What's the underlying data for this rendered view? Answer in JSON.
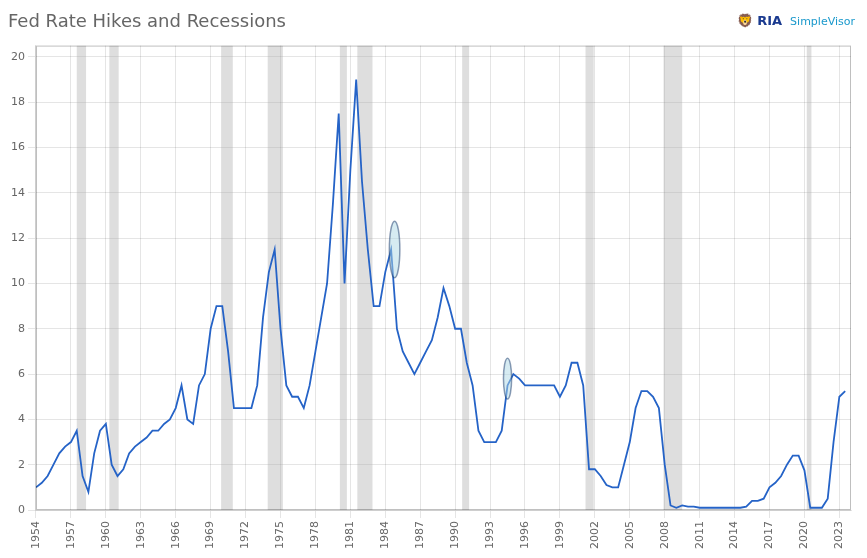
{
  "chart_data": {
    "type": "line",
    "title": "Fed Rate Hikes and Recessions",
    "annotations": [
      "🦁 RIA",
      "SimpleVisor"
    ],
    "color": "#2563c7",
    "x": [
      1954.0,
      1954.5,
      1955.0,
      1955.5,
      1956.0,
      1956.5,
      1957.0,
      1957.5,
      1958.0,
      1958.5,
      1959.0,
      1959.5,
      1960.0,
      1960.5,
      1961.0,
      1961.5,
      1962.0,
      1962.5,
      1963.0,
      1963.5,
      1964.0,
      1964.5,
      1965.0,
      1965.5,
      1966.0,
      1966.5,
      1967.0,
      1967.5,
      1968.0,
      1968.5,
      1969.0,
      1969.5,
      1970.0,
      1970.5,
      1971.0,
      1971.5,
      1972.0,
      1972.5,
      1973.0,
      1973.5,
      1974.0,
      1974.5,
      1975.0,
      1975.5,
      1976.0,
      1976.5,
      1977.0,
      1977.5,
      1978.0,
      1978.5,
      1979.0,
      1979.5,
      1980.0,
      1980.5,
      1981.0,
      1981.5,
      1982.0,
      1982.5,
      1983.0,
      1983.5,
      1984.0,
      1984.5,
      1985.0,
      1985.5,
      1986.0,
      1986.5,
      1987.0,
      1987.5,
      1988.0,
      1988.5,
      1989.0,
      1989.5,
      1990.0,
      1990.5,
      1991.0,
      1991.5,
      1992.0,
      1992.5,
      1993.0,
      1993.5,
      1994.0,
      1994.5,
      1995.0,
      1995.5,
      1996.0,
      1996.5,
      1997.0,
      1997.5,
      1998.0,
      1998.5,
      1999.0,
      1999.5,
      2000.0,
      2000.5,
      2001.0,
      2001.5,
      2002.0,
      2002.5,
      2003.0,
      2003.5,
      2004.0,
      2004.5,
      2005.0,
      2005.5,
      2006.0,
      2006.5,
      2007.0,
      2007.5,
      2008.0,
      2008.5,
      2009.0,
      2009.5,
      2010.0,
      2010.5,
      2011.0,
      2011.5,
      2012.0,
      2012.5,
      2013.0,
      2013.5,
      2014.0,
      2014.5,
      2015.0,
      2015.5,
      2016.0,
      2016.5,
      2017.0,
      2017.5,
      2018.0,
      2018.5,
      2019.0,
      2019.5,
      2020.0,
      2020.5,
      2021.0,
      2021.5,
      2022.0,
      2022.5,
      2023.0,
      2023.5
    ],
    "values": [
      1.0,
      1.2,
      1.5,
      2.0,
      2.5,
      2.8,
      3.0,
      3.5,
      1.5,
      0.8,
      2.5,
      3.5,
      3.8,
      2.0,
      1.5,
      1.8,
      2.5,
      2.8,
      3.0,
      3.2,
      3.5,
      3.5,
      3.8,
      4.0,
      4.5,
      5.5,
      4.0,
      3.8,
      5.5,
      6.0,
      8.0,
      9.0,
      9.0,
      7.0,
      4.5,
      4.5,
      4.5,
      4.5,
      5.5,
      8.5,
      10.5,
      11.5,
      8.0,
      5.5,
      5.0,
      5.0,
      4.5,
      5.5,
      7.0,
      8.5,
      10.0,
      13.5,
      17.5,
      10.0,
      15.0,
      19.0,
      14.5,
      11.5,
      9.0,
      9.0,
      10.5,
      11.5,
      8.0,
      7.0,
      6.5,
      6.0,
      6.5,
      7.0,
      7.5,
      8.5,
      9.8,
      9.0,
      8.0,
      8.0,
      6.5,
      5.5,
      3.5,
      3.0,
      3.0,
      3.0,
      3.5,
      5.5,
      6.0,
      5.8,
      5.5,
      5.5,
      5.5,
      5.5,
      5.5,
      5.5,
      5.0,
      5.5,
      6.5,
      6.5,
      5.5,
      1.8,
      1.8,
      1.5,
      1.1,
      1.0,
      1.0,
      2.0,
      3.0,
      4.5,
      5.25,
      5.25,
      5.0,
      4.5,
      2.0,
      0.2,
      0.1,
      0.2,
      0.15,
      0.15,
      0.1,
      0.1,
      0.1,
      0.1,
      0.1,
      0.1,
      0.1,
      0.1,
      0.15,
      0.4,
      0.4,
      0.5,
      1.0,
      1.2,
      1.5,
      2.0,
      2.4,
      2.4,
      1.75,
      0.1,
      0.1,
      0.1,
      0.5,
      3.0,
      5.0,
      5.25
    ],
    "recessions": [
      [
        1957.5,
        1958.3
      ],
      [
        1960.3,
        1961.1
      ],
      [
        1969.9,
        1970.9
      ],
      [
        1973.9,
        1975.2
      ],
      [
        1980.1,
        1980.7
      ],
      [
        1981.6,
        1982.9
      ],
      [
        1990.6,
        1991.2
      ],
      [
        2001.2,
        2001.9
      ],
      [
        2007.9,
        2009.5
      ],
      [
        2020.2,
        2020.6
      ]
    ],
    "ellipses": [
      {
        "x": 1984.8,
        "y": 11.5,
        "width": 0.9,
        "height": 2.5
      },
      {
        "x": 1994.5,
        "y": 5.8,
        "width": 0.7,
        "height": 1.8
      }
    ],
    "xlim": [
      1954,
      2024
    ],
    "xticks": [
      1954,
      1957,
      1960,
      1963,
      1966,
      1969,
      1972,
      1975,
      1978,
      1981,
      1984,
      1987,
      1990,
      1993,
      1996,
      1999,
      2002,
      2005,
      2008,
      2011,
      2014,
      2017,
      2020,
      2023
    ],
    "ylim": [
      0,
      20.5
    ],
    "yticks": [
      0,
      2,
      4,
      6,
      8,
      10,
      12,
      14,
      16,
      18,
      20
    ],
    "grid": true
  }
}
